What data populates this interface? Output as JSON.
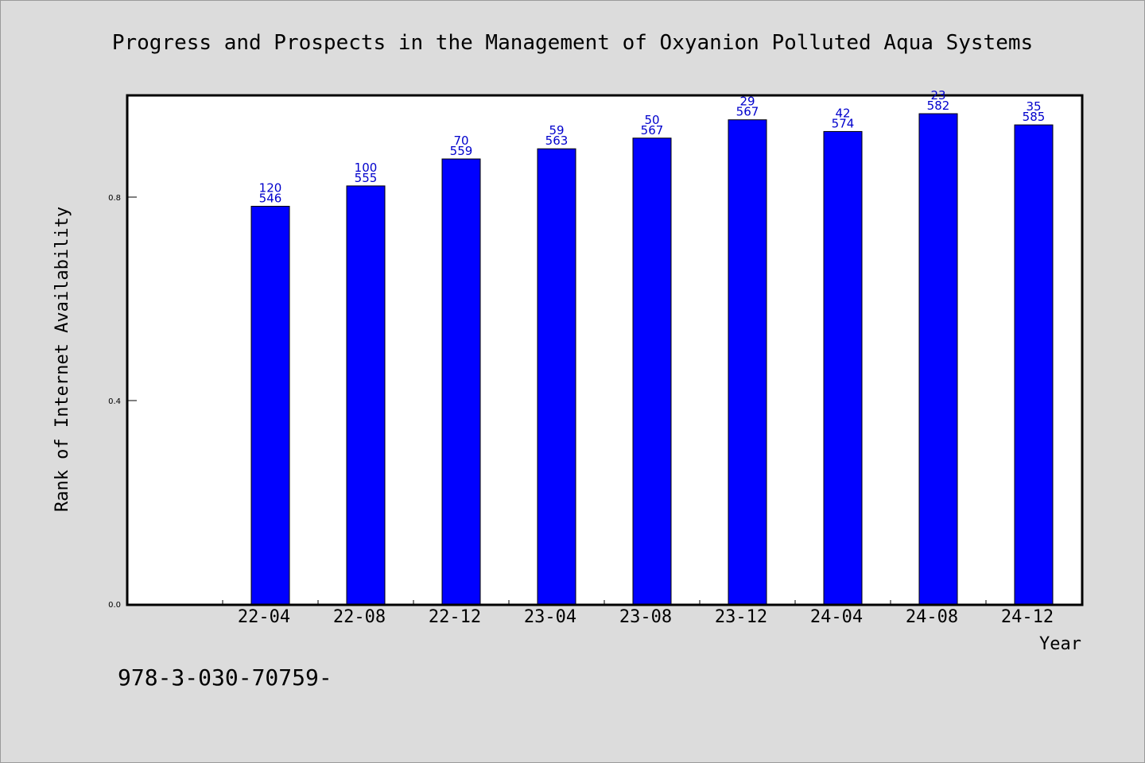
{
  "chart_data": {
    "type": "bar",
    "title": "Progress and Prospects in the Management of Oxyanion Polluted Aqua Systems",
    "xlabel": "Year",
    "ylabel": "Rank of Internet Availability",
    "categories": [
      "22-04",
      "22-08",
      "22-12",
      "23-04",
      "23-08",
      "23-12",
      "24-04",
      "24-08",
      "24-12"
    ],
    "values": [
      0.782,
      0.822,
      0.875,
      0.895,
      0.916,
      0.952,
      0.929,
      0.964,
      0.942
    ],
    "bar_label_top": [
      "120",
      "100",
      "70",
      "59",
      "50",
      "29",
      "42",
      "23",
      "35"
    ],
    "bar_label_bottom": [
      "546",
      "555",
      "559",
      "563",
      "567",
      "567",
      "574",
      "582",
      "585"
    ],
    "ylim": [
      0,
      1.0
    ],
    "yticks": [
      0.0,
      0.4,
      0.8
    ],
    "ytick_labels": [
      "0.0",
      "0.4",
      "0.8"
    ],
    "grid": false,
    "colors": {
      "bar": "#0000ff",
      "bar_edge": "#000000",
      "label": "#0000cc",
      "plot_bg": "#ffffff",
      "figure_bg": "#dcdcdc"
    }
  },
  "footer_text": "978-3-030-70759-"
}
